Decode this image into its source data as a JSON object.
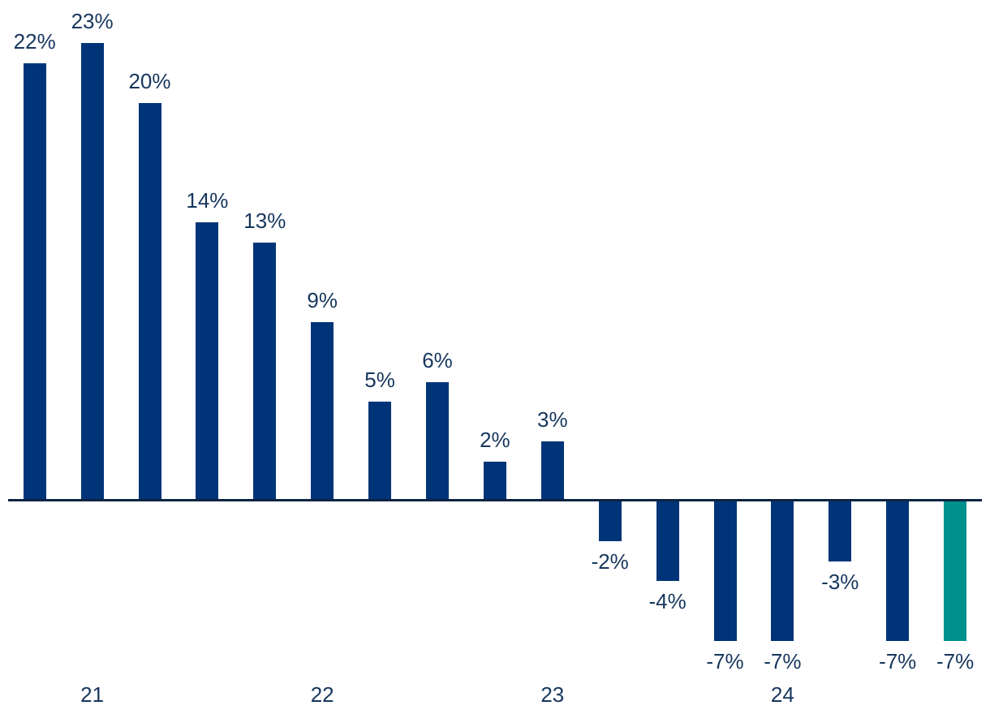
{
  "chart_data": {
    "type": "bar",
    "title": "",
    "xlabel": "",
    "ylabel": "",
    "unit": "%",
    "value_range_visible": [
      -7,
      23
    ],
    "bars": [
      {
        "label": "22%",
        "value": 22
      },
      {
        "label": "23%",
        "value": 23
      },
      {
        "label": "20%",
        "value": 20
      },
      {
        "label": "14%",
        "value": 14
      },
      {
        "label": "13%",
        "value": 13
      },
      {
        "label": "9%",
        "value": 9
      },
      {
        "label": "5%",
        "value": 5
      },
      {
        "label": "6%",
        "value": 6
      },
      {
        "label": "2%",
        "value": 2
      },
      {
        "label": "3%",
        "value": 3
      },
      {
        "label": "-2%",
        "value": -2
      },
      {
        "label": "-4%",
        "value": -4
      },
      {
        "label": "-7%",
        "value": -7
      },
      {
        "label": "-7%",
        "value": -7
      },
      {
        "label": "-3%",
        "value": -3
      },
      {
        "label": "-7%",
        "value": -7
      },
      {
        "label": "-7%",
        "value": -7,
        "highlight": true
      }
    ],
    "year_ticks": [
      {
        "label": "21",
        "bar_index": 1
      },
      {
        "label": "22",
        "bar_index": 5
      },
      {
        "label": "23",
        "bar_index": 9
      },
      {
        "label": "24",
        "bar_index": 13
      }
    ],
    "colors": {
      "bar": "#003478",
      "highlight_bar": "#00918D",
      "label_text": "#17365D",
      "axis_line": "#0C2442"
    },
    "layout_hints": {
      "gridlines": false,
      "y_axis_visible": false,
      "value_labels": "outside-end",
      "legend": "none",
      "baseline": "zero"
    }
  }
}
